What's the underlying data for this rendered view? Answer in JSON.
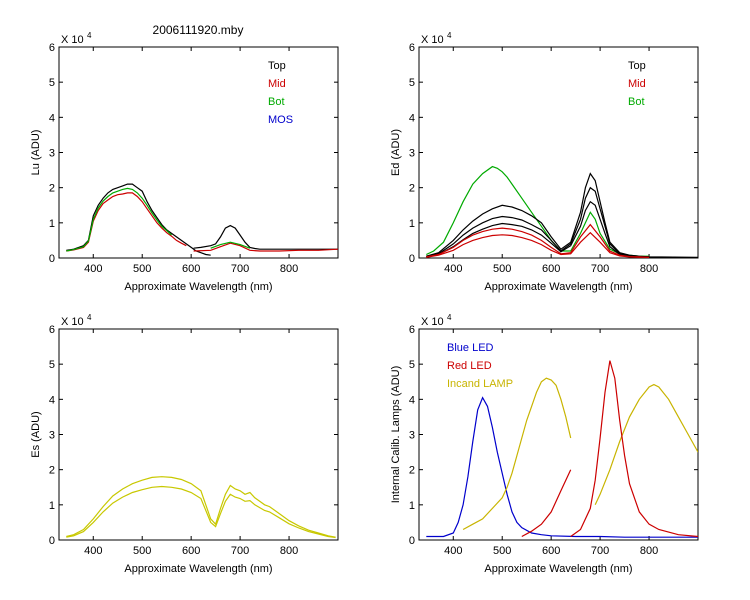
{
  "window_title": "2006111920.mby",
  "chart_data": [
    {
      "id": "lu",
      "type": "line",
      "title": "",
      "xlabel": "Approximate Wavelength (nm)",
      "ylabel": "Lu (ADU)",
      "exponent": "X 10",
      "exponent_power": "4",
      "xlim": [
        330,
        900
      ],
      "ylim": [
        0,
        6
      ],
      "xticks": [
        "400",
        "500",
        "600",
        "700",
        "800"
      ],
      "yticks": [
        "0",
        "1",
        "2",
        "3",
        "4",
        "5",
        "6"
      ],
      "legend": [
        {
          "label": "Top",
          "color": "#000000"
        },
        {
          "label": "Mid",
          "color": "#cc0000"
        },
        {
          "label": "Bot",
          "color": "#00aa00"
        },
        {
          "label": "MOS",
          "color": "#0000cc"
        }
      ],
      "series": [
        {
          "name": "Top",
          "color": "#000000",
          "x": [
            345,
            360,
            380,
            390,
            400,
            410,
            420,
            430,
            440,
            450,
            460,
            470,
            480,
            490,
            500,
            510,
            520,
            530,
            540,
            550,
            560,
            570,
            580,
            590,
            600,
            610,
            620,
            630,
            640
          ],
          "y": [
            0.22,
            0.25,
            0.35,
            0.5,
            1.2,
            1.5,
            1.7,
            1.85,
            1.95,
            2.0,
            2.05,
            2.1,
            2.1,
            2.0,
            1.9,
            1.6,
            1.35,
            1.15,
            0.95,
            0.8,
            0.7,
            0.6,
            0.5,
            0.4,
            0.3,
            0.2,
            0.15,
            0.1,
            0.08
          ]
        },
        {
          "name": "Top (2)",
          "color": "#000000",
          "x": [
            605,
            620,
            640,
            650,
            660,
            670,
            680,
            690,
            700,
            710,
            720,
            730,
            740,
            760,
            780,
            800,
            830,
            860,
            900
          ],
          "y": [
            0.28,
            0.3,
            0.35,
            0.4,
            0.6,
            0.85,
            0.92,
            0.85,
            0.65,
            0.45,
            0.3,
            0.27,
            0.25,
            0.25,
            0.25,
            0.25,
            0.25,
            0.25,
            0.25
          ]
        },
        {
          "name": "Mid",
          "color": "#cc0000",
          "x": [
            345,
            360,
            380,
            390,
            400,
            410,
            420,
            430,
            440,
            450,
            460,
            470,
            480,
            490,
            500,
            510,
            520,
            530,
            540,
            550,
            560,
            570,
            580,
            590
          ],
          "y": [
            0.2,
            0.23,
            0.3,
            0.45,
            1.05,
            1.35,
            1.55,
            1.65,
            1.75,
            1.8,
            1.82,
            1.85,
            1.85,
            1.75,
            1.6,
            1.4,
            1.2,
            1.0,
            0.85,
            0.72,
            0.62,
            0.5,
            0.42,
            0.35
          ]
        },
        {
          "name": "Mid (2)",
          "color": "#cc0000",
          "x": [
            605,
            640,
            660,
            680,
            700,
            720,
            740,
            780,
            820,
            860,
            900
          ],
          "y": [
            0.2,
            0.22,
            0.32,
            0.42,
            0.35,
            0.22,
            0.2,
            0.2,
            0.22,
            0.22,
            0.25
          ]
        },
        {
          "name": "Bot",
          "color": "#00aa00",
          "x": [
            345,
            360,
            380,
            390,
            400,
            410,
            420,
            430,
            440,
            450,
            460,
            470,
            480,
            490,
            500,
            510,
            520,
            530,
            540,
            550,
            560
          ],
          "y": [
            0.2,
            0.24,
            0.32,
            0.48,
            1.1,
            1.42,
            1.62,
            1.75,
            1.85,
            1.9,
            1.95,
            1.98,
            1.95,
            1.85,
            1.7,
            1.5,
            1.28,
            1.08,
            0.9,
            0.78,
            0.65
          ]
        },
        {
          "name": "Bot (2)",
          "color": "#00aa00",
          "x": [
            640,
            660,
            680,
            700,
            720
          ],
          "y": [
            0.28,
            0.38,
            0.45,
            0.38,
            0.28
          ]
        }
      ]
    },
    {
      "id": "ed",
      "type": "line",
      "title": "",
      "xlabel": "Approximate Wavelength (nm)",
      "ylabel": "Ed (ADU)",
      "exponent": "X 10",
      "exponent_power": "4",
      "xlim": [
        330,
        900
      ],
      "ylim": [
        0,
        6
      ],
      "xticks": [
        "400",
        "500",
        "600",
        "700",
        "800"
      ],
      "yticks": [
        "0",
        "1",
        "2",
        "3",
        "4",
        "5",
        "6"
      ],
      "legend": [
        {
          "label": "Top",
          "color": "#000000"
        },
        {
          "label": "Mid",
          "color": "#cc0000"
        },
        {
          "label": "Bot",
          "color": "#00aa00"
        }
      ],
      "series": [
        {
          "name": "Bot",
          "color": "#00aa00",
          "x": [
            345,
            360,
            380,
            400,
            420,
            440,
            460,
            480,
            490,
            500,
            510,
            520,
            540,
            560,
            580,
            600,
            620,
            640,
            660,
            670,
            680,
            690,
            700,
            720,
            740,
            760,
            780,
            800
          ],
          "y": [
            0.1,
            0.2,
            0.45,
            1.0,
            1.6,
            2.1,
            2.4,
            2.6,
            2.55,
            2.45,
            2.3,
            2.1,
            1.7,
            1.3,
            0.9,
            0.5,
            0.2,
            0.2,
            0.7,
            1.0,
            1.3,
            1.1,
            0.7,
            0.25,
            0.12,
            0.08,
            0.05,
            0.05
          ]
        },
        {
          "name": "Top",
          "color": "#000000",
          "x": [
            345,
            370,
            400,
            420,
            440,
            460,
            480,
            500,
            520,
            540,
            560,
            580,
            600,
            620,
            640,
            660,
            670,
            680,
            690,
            700,
            710,
            720,
            740,
            760,
            780,
            800,
            900
          ],
          "y": [
            0.05,
            0.15,
            0.5,
            0.8,
            1.05,
            1.25,
            1.4,
            1.5,
            1.45,
            1.35,
            1.2,
            1.0,
            0.6,
            0.25,
            0.45,
            1.3,
            2.0,
            2.4,
            2.2,
            1.6,
            1.0,
            0.45,
            0.15,
            0.08,
            0.05,
            0.03,
            0.02
          ]
        },
        {
          "name": "Top (2)",
          "color": "#000000",
          "x": [
            345,
            370,
            400,
            420,
            440,
            460,
            480,
            500,
            520,
            540,
            560,
            580,
            600,
            620,
            640,
            660,
            670,
            680,
            690,
            700,
            710,
            720,
            740,
            760,
            780,
            800
          ],
          "y": [
            0.05,
            0.12,
            0.4,
            0.65,
            0.85,
            1.0,
            1.12,
            1.18,
            1.15,
            1.08,
            0.95,
            0.8,
            0.5,
            0.2,
            0.4,
            1.1,
            1.7,
            2.0,
            1.9,
            1.4,
            0.9,
            0.4,
            0.12,
            0.06,
            0.04,
            0.03
          ]
        },
        {
          "name": "Top (3)",
          "color": "#000000",
          "x": [
            345,
            370,
            400,
            420,
            440,
            460,
            480,
            500,
            520,
            540,
            560,
            580,
            600,
            620,
            640,
            660,
            670,
            680,
            690,
            700,
            710,
            720,
            740,
            760,
            780,
            800
          ],
          "y": [
            0.04,
            0.1,
            0.32,
            0.52,
            0.7,
            0.82,
            0.92,
            0.98,
            0.95,
            0.9,
            0.8,
            0.65,
            0.42,
            0.18,
            0.35,
            0.9,
            1.35,
            1.6,
            1.5,
            1.1,
            0.7,
            0.32,
            0.1,
            0.05,
            0.03,
            0.02
          ]
        },
        {
          "name": "Mid",
          "color": "#cc0000",
          "x": [
            345,
            370,
            400,
            420,
            440,
            460,
            480,
            500,
            520,
            540,
            560,
            580,
            600,
            620,
            640,
            660,
            680,
            700,
            720,
            740,
            760,
            780,
            800
          ],
          "y": [
            0.03,
            0.1,
            0.3,
            0.5,
            0.65,
            0.75,
            0.82,
            0.85,
            0.82,
            0.75,
            0.65,
            0.5,
            0.3,
            0.12,
            0.15,
            0.6,
            0.95,
            0.6,
            0.2,
            0.08,
            0.04,
            0.03,
            0.02
          ]
        },
        {
          "name": "Mid (2)",
          "color": "#cc0000",
          "x": [
            345,
            370,
            400,
            420,
            440,
            460,
            480,
            500,
            520,
            540,
            560,
            580,
            600,
            620,
            640,
            660,
            680,
            700,
            720,
            740,
            760,
            780,
            800
          ],
          "y": [
            0.02,
            0.08,
            0.22,
            0.38,
            0.5,
            0.58,
            0.64,
            0.66,
            0.64,
            0.58,
            0.5,
            0.38,
            0.22,
            0.1,
            0.12,
            0.45,
            0.72,
            0.45,
            0.15,
            0.06,
            0.03,
            0.02,
            0.02
          ]
        }
      ]
    },
    {
      "id": "es",
      "type": "line",
      "title": "",
      "xlabel": "Approximate Wavelength (nm)",
      "ylabel": "Es (ADU)",
      "exponent": "X 10",
      "exponent_power": "4",
      "xlim": [
        330,
        900
      ],
      "ylim": [
        0,
        6
      ],
      "xticks": [
        "400",
        "500",
        "600",
        "700",
        "800"
      ],
      "yticks": [
        "0",
        "1",
        "2",
        "3",
        "4",
        "5",
        "6"
      ],
      "legend": [],
      "series": [
        {
          "name": "Es",
          "color": "#c8c800",
          "x": [
            345,
            360,
            380,
            400,
            420,
            440,
            460,
            480,
            500,
            520,
            540,
            560,
            580,
            600,
            620,
            640,
            650,
            660,
            670,
            680,
            690,
            700,
            710,
            720,
            730,
            740,
            750,
            760,
            780,
            800,
            820,
            840,
            860,
            880,
            895
          ],
          "y": [
            0.1,
            0.15,
            0.3,
            0.6,
            0.95,
            1.25,
            1.45,
            1.6,
            1.7,
            1.78,
            1.8,
            1.78,
            1.72,
            1.6,
            1.4,
            0.6,
            0.45,
            0.9,
            1.3,
            1.55,
            1.45,
            1.4,
            1.3,
            1.35,
            1.2,
            1.1,
            1.0,
            0.95,
            0.75,
            0.55,
            0.4,
            0.28,
            0.2,
            0.12,
            0.08
          ]
        },
        {
          "name": "Es (2)",
          "color": "#c8c800",
          "x": [
            345,
            360,
            380,
            400,
            420,
            440,
            460,
            480,
            500,
            520,
            540,
            560,
            580,
            600,
            620,
            640,
            650,
            660,
            670,
            680,
            690,
            700,
            710,
            720,
            730,
            740,
            750,
            760,
            780,
            800,
            820,
            840,
            860,
            880,
            895
          ],
          "y": [
            0.08,
            0.12,
            0.24,
            0.5,
            0.8,
            1.05,
            1.22,
            1.35,
            1.43,
            1.5,
            1.52,
            1.5,
            1.45,
            1.35,
            1.18,
            0.5,
            0.38,
            0.75,
            1.1,
            1.3,
            1.22,
            1.18,
            1.1,
            1.12,
            1.0,
            0.92,
            0.84,
            0.8,
            0.63,
            0.46,
            0.34,
            0.24,
            0.17,
            0.1,
            0.07
          ]
        }
      ]
    },
    {
      "id": "lamps",
      "type": "line",
      "title": "",
      "xlabel": "Approximate Wavelength (nm)",
      "ylabel": "Internal Calib. Lamps (ADU)",
      "exponent": "X 10",
      "exponent_power": "4",
      "xlim": [
        330,
        900
      ],
      "ylim": [
        0,
        6
      ],
      "xticks": [
        "400",
        "500",
        "600",
        "700",
        "800"
      ],
      "yticks": [
        "0",
        "1",
        "2",
        "3",
        "4",
        "5",
        "6"
      ],
      "legend": [
        {
          "label": "Blue LED",
          "color": "#0000cc"
        },
        {
          "label": "Red LED",
          "color": "#cc0000"
        },
        {
          "label": "Incand LAMP",
          "color": "#c8b400"
        }
      ],
      "series": [
        {
          "name": "Blue LED",
          "color": "#0000cc",
          "x": [
            345,
            380,
            400,
            410,
            420,
            430,
            440,
            450,
            460,
            470,
            480,
            490,
            500,
            510,
            520,
            530,
            540,
            560,
            580,
            600,
            650,
            700,
            750,
            800,
            900
          ],
          "y": [
            0.1,
            0.1,
            0.2,
            0.5,
            1.0,
            1.8,
            2.8,
            3.7,
            4.05,
            3.8,
            3.2,
            2.5,
            1.9,
            1.3,
            0.8,
            0.5,
            0.35,
            0.2,
            0.15,
            0.12,
            0.1,
            0.1,
            0.08,
            0.08,
            0.08
          ]
        },
        {
          "name": "Incand LAMP A",
          "color": "#c8b400",
          "x": [
            420,
            440,
            460,
            480,
            500,
            510,
            520,
            530,
            540,
            550,
            560,
            570,
            580,
            590,
            600,
            610,
            620,
            630,
            640
          ],
          "y": [
            0.3,
            0.45,
            0.6,
            0.9,
            1.2,
            1.5,
            1.9,
            2.4,
            2.9,
            3.4,
            3.8,
            4.2,
            4.5,
            4.6,
            4.55,
            4.4,
            4.0,
            3.5,
            2.9
          ]
        },
        {
          "name": "Incand LAMP B",
          "color": "#c8b400",
          "x": [
            690,
            700,
            720,
            740,
            760,
            780,
            800,
            810,
            820,
            840,
            860,
            880,
            900
          ],
          "y": [
            1.0,
            1.3,
            2.0,
            2.8,
            3.5,
            4.0,
            4.35,
            4.42,
            4.35,
            4.0,
            3.5,
            3.0,
            2.5
          ]
        },
        {
          "name": "Red LED A",
          "color": "#cc0000",
          "x": [
            540,
            560,
            580,
            600,
            610,
            620,
            630,
            640
          ],
          "y": [
            0.1,
            0.25,
            0.45,
            0.8,
            1.1,
            1.4,
            1.7,
            2.0
          ]
        },
        {
          "name": "Red LED B",
          "color": "#cc0000",
          "x": [
            640,
            660,
            680,
            690,
            700,
            710,
            720,
            730,
            740,
            750,
            760,
            780,
            800,
            820,
            860,
            900
          ],
          "y": [
            0.1,
            0.3,
            0.9,
            1.7,
            2.9,
            4.2,
            5.1,
            4.6,
            3.4,
            2.4,
            1.6,
            0.8,
            0.45,
            0.3,
            0.15,
            0.1
          ]
        }
      ]
    }
  ]
}
